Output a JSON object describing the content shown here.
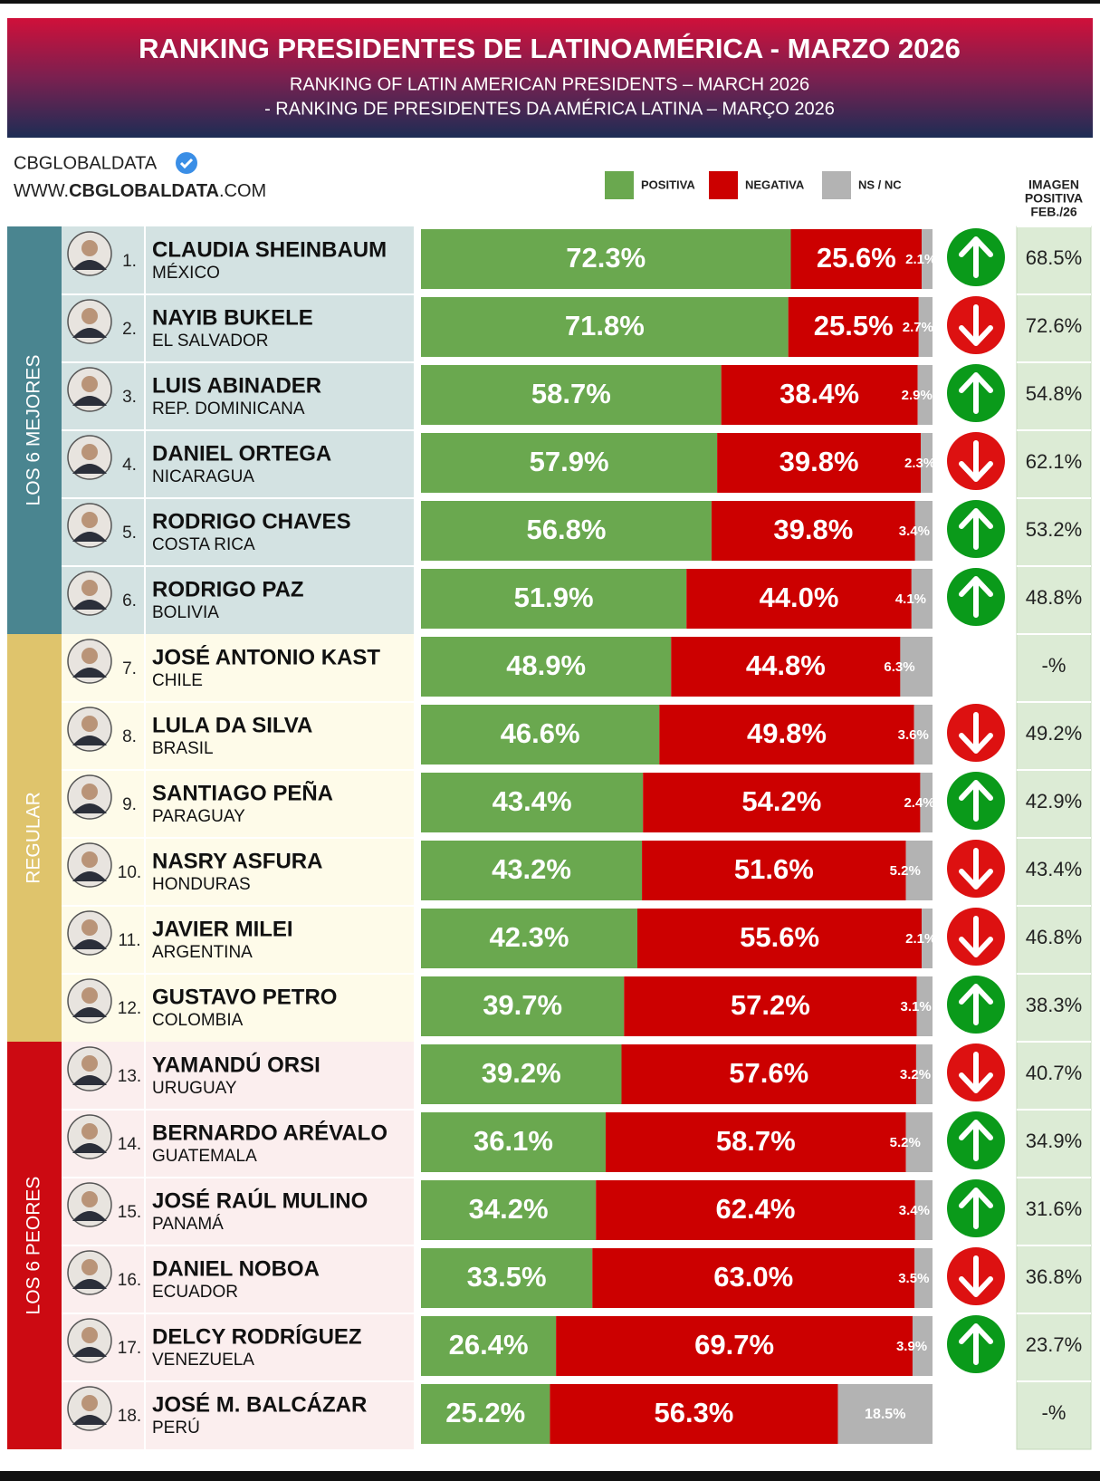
{
  "chart_data": {
    "type": "stacked-bar-ranking",
    "title": "RANKING PRESIDENTES DE LATINOAMÉRICA - MARZO 2026",
    "subtitle": [
      "RANKING OF LATIN AMERICAN PRESIDENTS – MARCH 2026",
      "- RANKING DE PRESIDENTES DA AMÉRICA LATINA – MARÇO 2026"
    ],
    "brand": "CBGLOBALDATA",
    "website": [
      "WWW.",
      "CBGLOBALDATA",
      ".COM"
    ],
    "previous_header": [
      "IMAGEN",
      "POSITIVA",
      "FEB./26"
    ],
    "xlim": [
      0,
      100
    ],
    "series": [
      {
        "name": "POSITIVA",
        "color": "#6aa84f"
      },
      {
        "name": "NEGATIVA",
        "color": "#cc0000"
      },
      {
        "name": "NS / NC",
        "color": "#b3b3b3"
      }
    ],
    "trend_colors": {
      "up": "#0a9a1a",
      "down": "#dd1111"
    },
    "groups": [
      {
        "label": "LOS 6 MEJORES",
        "color": "#4a8590",
        "tint": "#d3e2e2",
        "rows": [
          {
            "rank": "1.",
            "name": "CLAUDIA SHEINBAUM",
            "country": "MÉXICO",
            "values": [
              72.3,
              25.6,
              2.1
            ],
            "value_labels": [
              "72.3%",
              "25.6%",
              "2.1%"
            ],
            "trend": "up",
            "previous": 68.5,
            "previous_label": "68.5%"
          },
          {
            "rank": "2.",
            "name": "NAYIB BUKELE",
            "country": "EL SALVADOR",
            "values": [
              71.8,
              25.5,
              2.7
            ],
            "value_labels": [
              "71.8%",
              "25.5%",
              "2.7%"
            ],
            "trend": "down",
            "previous": 72.6,
            "previous_label": "72.6%"
          },
          {
            "rank": "3.",
            "name": "LUIS ABINADER",
            "country": "REP. DOMINICANA",
            "values": [
              58.7,
              38.4,
              2.9
            ],
            "value_labels": [
              "58.7%",
              "38.4%",
              "2.9%"
            ],
            "trend": "up",
            "previous": 54.8,
            "previous_label": "54.8%"
          },
          {
            "rank": "4.",
            "name": "DANIEL ORTEGA",
            "country": "NICARAGUA",
            "values": [
              57.9,
              39.8,
              2.3
            ],
            "value_labels": [
              "57.9%",
              "39.8%",
              "2.3%"
            ],
            "trend": "down",
            "previous": 62.1,
            "previous_label": "62.1%"
          },
          {
            "rank": "5.",
            "name": "RODRIGO CHAVES",
            "country": "COSTA RICA",
            "values": [
              56.8,
              39.8,
              3.4
            ],
            "value_labels": [
              "56.8%",
              "39.8%",
              "3.4%"
            ],
            "trend": "up",
            "previous": 53.2,
            "previous_label": "53.2%"
          },
          {
            "rank": "6.",
            "name": "RODRIGO PAZ",
            "country": "BOLIVIA",
            "values": [
              51.9,
              44.0,
              4.1
            ],
            "value_labels": [
              "51.9%",
              "44.0%",
              "4.1%"
            ],
            "trend": "up",
            "previous": 48.8,
            "previous_label": "48.8%"
          }
        ]
      },
      {
        "label": "REGULAR",
        "color": "#dfc46c",
        "tint": "#fefbe9",
        "rows": [
          {
            "rank": "7.",
            "name": "JOSÉ ANTONIO KAST",
            "country": "CHILE",
            "values": [
              48.9,
              44.8,
              6.3
            ],
            "value_labels": [
              "48.9%",
              "44.8%",
              "6.3%"
            ],
            "trend": null,
            "previous": null,
            "previous_label": "-%"
          },
          {
            "rank": "8.",
            "name": "LULA DA SILVA",
            "country": "BRASIL",
            "values": [
              46.6,
              49.8,
              3.6
            ],
            "value_labels": [
              "46.6%",
              "49.8%",
              "3.6%"
            ],
            "trend": "down",
            "previous": 49.2,
            "previous_label": "49.2%"
          },
          {
            "rank": "9.",
            "name": "SANTIAGO PEÑA",
            "country": "PARAGUAY",
            "values": [
              43.4,
              54.2,
              2.4
            ],
            "value_labels": [
              "43.4%",
              "54.2%",
              "2.4%"
            ],
            "trend": "up",
            "previous": 42.9,
            "previous_label": "42.9%"
          },
          {
            "rank": "10.",
            "name": "NASRY ASFURA",
            "country": "HONDURAS",
            "values": [
              43.2,
              51.6,
              5.2
            ],
            "value_labels": [
              "43.2%",
              "51.6%",
              "5.2%"
            ],
            "trend": "down",
            "previous": 43.4,
            "previous_label": "43.4%"
          },
          {
            "rank": "11.",
            "name": "JAVIER MILEI",
            "country": "ARGENTINA",
            "values": [
              42.3,
              55.6,
              2.1
            ],
            "value_labels": [
              "42.3%",
              "55.6%",
              "2.1%"
            ],
            "trend": "down",
            "previous": 46.8,
            "previous_label": "46.8%"
          },
          {
            "rank": "12.",
            "name": "GUSTAVO PETRO",
            "country": "COLOMBIA",
            "values": [
              39.7,
              57.2,
              3.1
            ],
            "value_labels": [
              "39.7%",
              "57.2%",
              "3.1%"
            ],
            "trend": "up",
            "previous": 38.3,
            "previous_label": "38.3%"
          }
        ]
      },
      {
        "label": "LOS 6 PEORES",
        "color": "#cc0a12",
        "tint": "#fbeeee",
        "rows": [
          {
            "rank": "13.",
            "name": "YAMANDÚ ORSI",
            "country": "URUGUAY",
            "values": [
              39.2,
              57.6,
              3.2
            ],
            "value_labels": [
              "39.2%",
              "57.6%",
              "3.2%"
            ],
            "trend": "down",
            "previous": 40.7,
            "previous_label": "40.7%"
          },
          {
            "rank": "14.",
            "name": "BERNARDO ARÉVALO",
            "country": "GUATEMALA",
            "values": [
              36.1,
              58.7,
              5.2
            ],
            "value_labels": [
              "36.1%",
              "58.7%",
              "5.2%"
            ],
            "trend": "up",
            "previous": 34.9,
            "previous_label": "34.9%"
          },
          {
            "rank": "15.",
            "name": "JOSÉ RAÚL MULINO",
            "country": "PANAMÁ",
            "values": [
              34.2,
              62.4,
              3.4
            ],
            "value_labels": [
              "34.2%",
              "62.4%",
              "3.4%"
            ],
            "trend": "up",
            "previous": 31.6,
            "previous_label": "31.6%"
          },
          {
            "rank": "16.",
            "name": "DANIEL NOBOA",
            "country": "ECUADOR",
            "values": [
              33.5,
              63.0,
              3.5
            ],
            "value_labels": [
              "33.5%",
              "63.0%",
              "3.5%"
            ],
            "trend": "down",
            "previous": 36.8,
            "previous_label": "36.8%"
          },
          {
            "rank": "17.",
            "name": "DELCY RODRÍGUEZ",
            "country": "VENEZUELA",
            "values": [
              26.4,
              69.7,
              3.9
            ],
            "value_labels": [
              "26.4%",
              "69.7%",
              "3.9%"
            ],
            "trend": "up",
            "previous": 23.7,
            "previous_label": "23.7%"
          },
          {
            "rank": "18.",
            "name": "JOSÉ M. BALCÁZAR",
            "country": "PERÚ",
            "values": [
              25.2,
              56.3,
              18.5
            ],
            "value_labels": [
              "25.2%",
              "56.3%",
              "18.5%"
            ],
            "trend": null,
            "previous": null,
            "previous_label": "-%"
          }
        ]
      }
    ]
  }
}
